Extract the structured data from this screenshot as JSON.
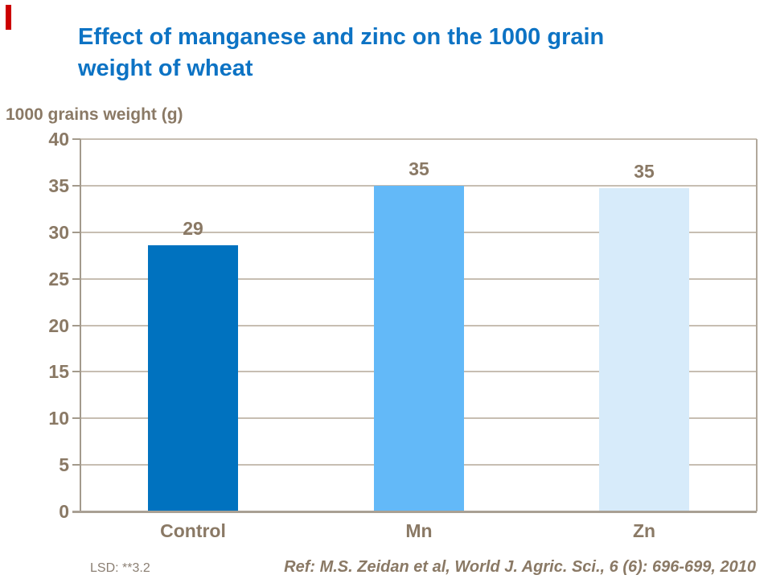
{
  "slide": {
    "accent_bar_color": "#CC0000",
    "title": "Effect of manganese and zinc on the 1000 grain weight of wheat",
    "title_lines": [
      "Effect of manganese and zinc on the 1000 grain",
      "weight of wheat"
    ],
    "title_color": "#0D73C4",
    "lsd_note": "LSD: **3.2",
    "reference": "Ref: M.S. Zeidan et al, World J. Agric. Sci., 6 (6): 696-699, 2010"
  },
  "chart_data": {
    "type": "bar",
    "title": "",
    "axis_title": "1000 grains weight (g)",
    "xlabel": "",
    "ylabel": "1000 grains weight (g)",
    "categories": [
      "Control",
      "Mn",
      "Zn"
    ],
    "values": [
      29,
      35,
      35
    ],
    "plotted_values": [
      28.6,
      35.0,
      34.7
    ],
    "data_labels": [
      "29",
      "35",
      "35"
    ],
    "bar_colors": [
      "#0072BF",
      "#63B9F8",
      "#D7EBFA"
    ],
    "ylim": [
      0,
      40
    ],
    "yticks": [
      0,
      5,
      10,
      15,
      20,
      25,
      30,
      35,
      40
    ],
    "grid": true,
    "legend": "none",
    "text_color": "#8A7965",
    "gridline_color": "#C7BEB2",
    "axis_line_color": "#A39A8C"
  }
}
